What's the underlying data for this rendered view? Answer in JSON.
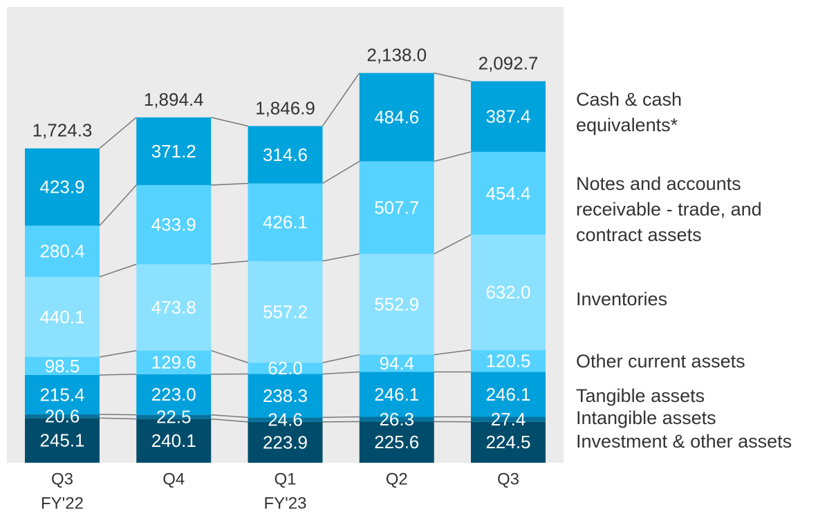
{
  "chart_data": {
    "type": "stacked-bar",
    "categories": [
      [
        "Q3",
        "FY'22"
      ],
      [
        "Q4"
      ],
      [
        "Q1",
        "FY'23"
      ],
      [
        "Q2"
      ],
      [
        "Q3"
      ]
    ],
    "ylim": [
      0,
      2500
    ],
    "totals": [
      1724.3,
      1894.4,
      1846.9,
      2138.0,
      2092.7
    ],
    "total_labels": [
      "1,724.3",
      "1,894.4",
      "1,846.9",
      "2,138.0",
      "2,092.7"
    ],
    "series": [
      {
        "name": [
          "Investment & other assets"
        ],
        "color": "#004c6a",
        "values": [
          245.1,
          240.1,
          223.9,
          225.6,
          224.5
        ],
        "value_labels": [
          "245.1",
          "240.1",
          "223.9",
          "225.6",
          "224.5"
        ]
      },
      {
        "name": [
          "Intangible assets"
        ],
        "color": "#06729c",
        "values": [
          20.6,
          22.5,
          24.6,
          26.3,
          27.4
        ],
        "value_labels": [
          "20.6",
          "22.5",
          "24.6",
          "26.3",
          "27.4"
        ]
      },
      {
        "name": [
          "Tangible assets"
        ],
        "color": "#00a0dc",
        "values": [
          215.4,
          223.0,
          238.3,
          246.1,
          246.1
        ],
        "value_labels": [
          "215.4",
          "223.0",
          "238.3",
          "246.1",
          "246.1"
        ]
      },
      {
        "name": [
          "Other current assets"
        ],
        "color": "#55d2ff",
        "values": [
          98.5,
          129.6,
          62.0,
          94.4,
          120.5
        ],
        "value_labels": [
          "98.5",
          "129.6",
          "62.0",
          "94.4",
          "120.5"
        ]
      },
      {
        "name": [
          "Inventories"
        ],
        "color": "#8ce1ff",
        "values": [
          440.1,
          473.8,
          557.2,
          552.9,
          632.0
        ],
        "value_labels": [
          "440.1",
          "473.8",
          "557.2",
          "552.9",
          "632.0"
        ]
      },
      {
        "name": [
          "Notes and accounts",
          "receivable - trade, and",
          "contract assets"
        ],
        "color": "#55d2ff",
        "values": [
          280.4,
          433.9,
          426.1,
          507.7,
          454.4
        ],
        "value_labels": [
          "280.4",
          "433.9",
          "426.1",
          "507.7",
          "454.4"
        ]
      },
      {
        "name": [
          "Cash & cash",
          "equivalents*"
        ],
        "color": "#00a3dc",
        "values": [
          423.9,
          371.2,
          314.6,
          484.6,
          387.4
        ],
        "value_labels": [
          "423.9",
          "371.2",
          "314.6",
          "484.6",
          "387.4"
        ]
      }
    ]
  }
}
